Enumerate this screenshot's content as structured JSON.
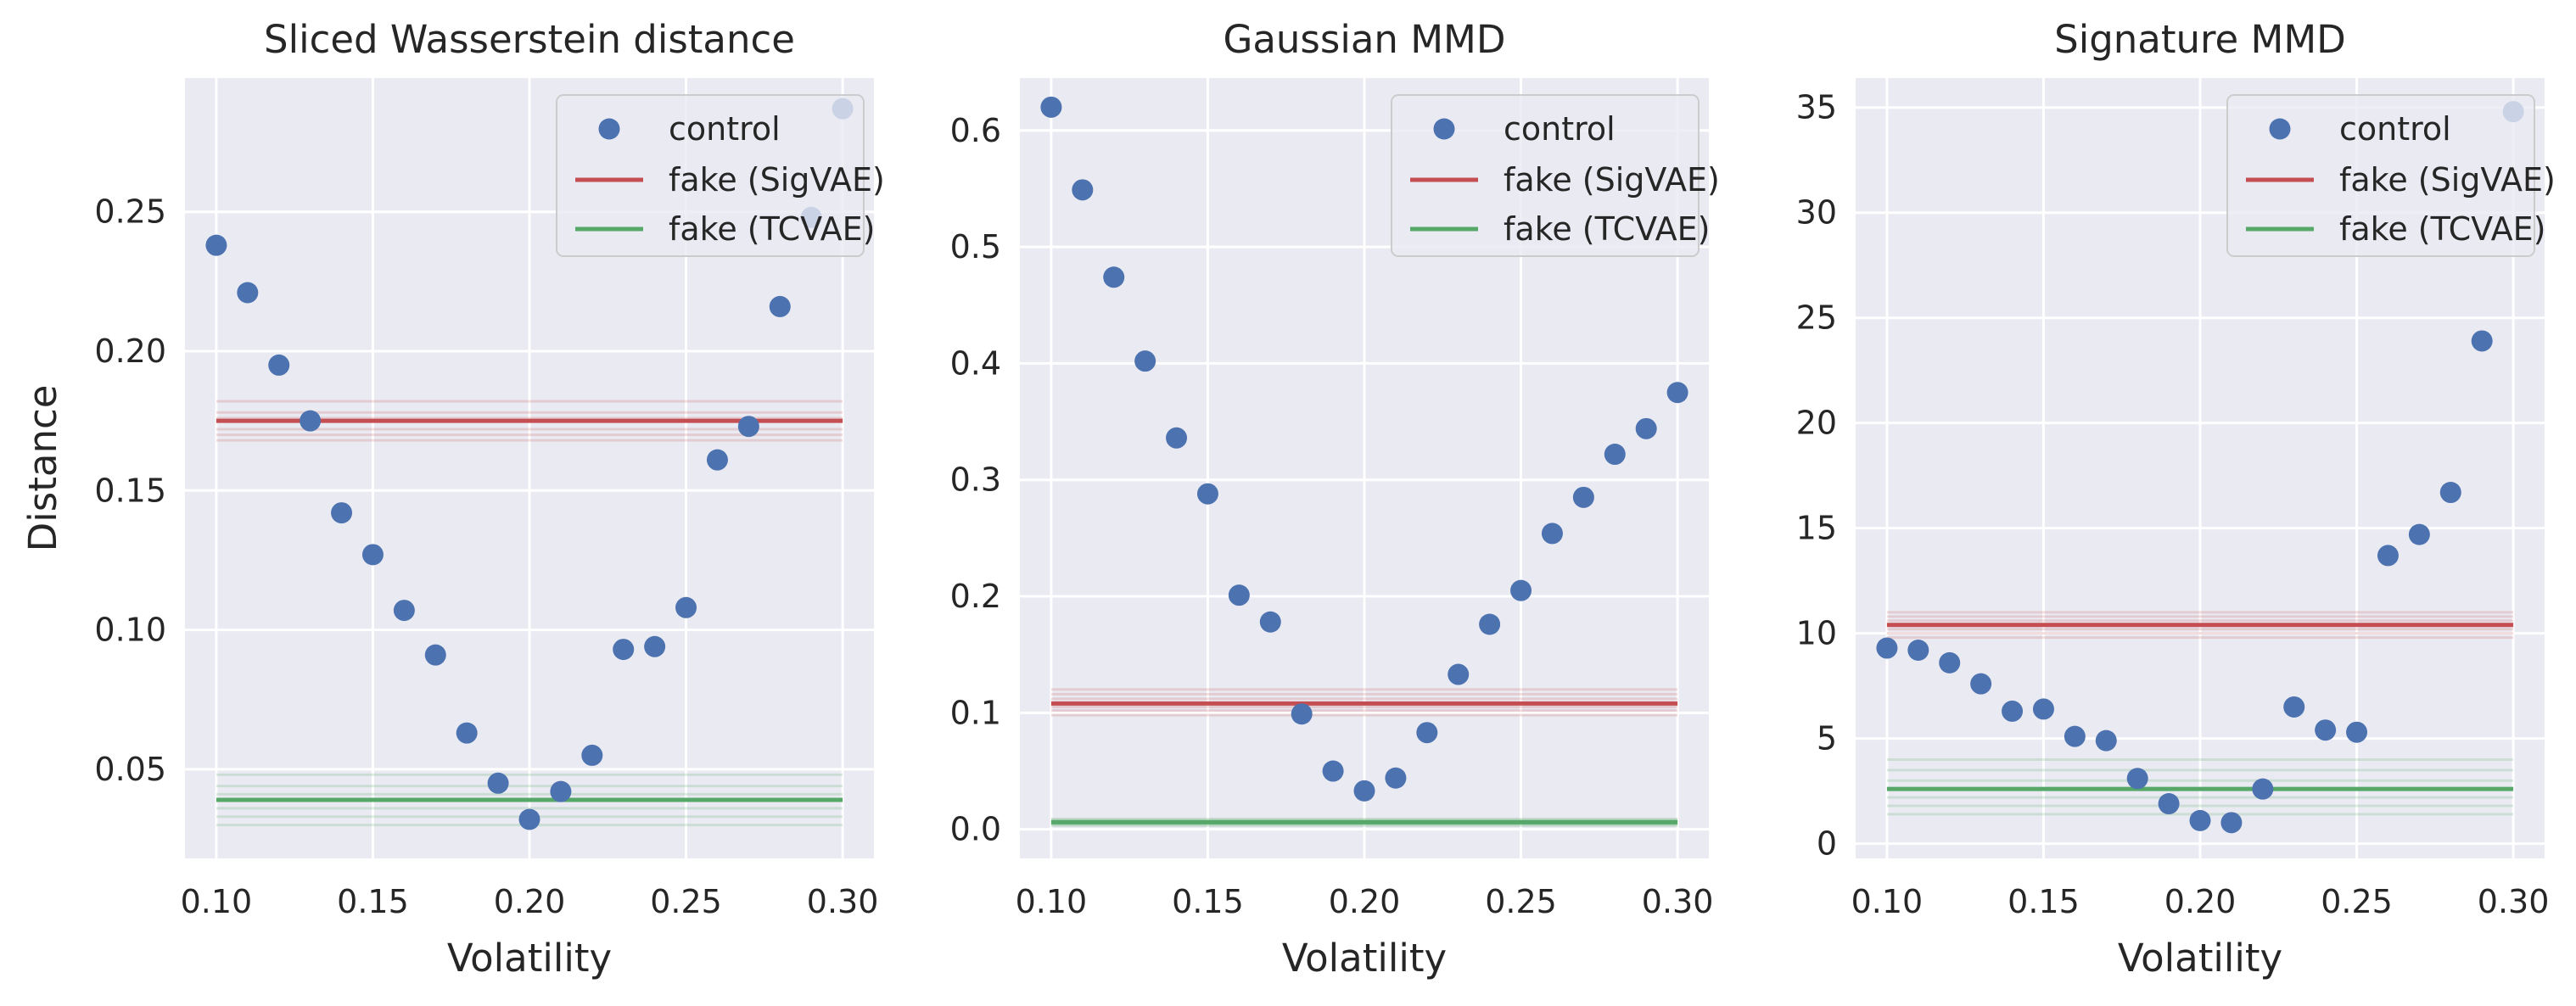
{
  "figure": {
    "ylabel": "Distance",
    "colors": {
      "background": "#EAEAF2",
      "grid": "#FFFFFF",
      "control": "#4C72B0",
      "sigvae": "#C44E52",
      "tcvae": "#55A868",
      "text": "#262626"
    }
  },
  "chart_data": [
    {
      "type": "scatter",
      "title": "Sliced Wasserstein distance",
      "xlabel": "Volatility",
      "ylabel": "Distance",
      "xlim": [
        0.09,
        0.31
      ],
      "ylim": [
        0.018,
        0.298
      ],
      "xticks": [
        0.1,
        0.15,
        0.2,
        0.25,
        0.3
      ],
      "xtick_labels": [
        "0.10",
        "0.15",
        "0.20",
        "0.25",
        "0.30"
      ],
      "yticks": [
        0.05,
        0.1,
        0.15,
        0.2,
        0.25
      ],
      "ytick_labels": [
        "0.05",
        "0.10",
        "0.15",
        "0.20",
        "0.25"
      ],
      "grid": true,
      "legend_position": "top-right",
      "legend": [
        "control",
        "fake (SigVAE)",
        "fake (TCVAE)"
      ],
      "control": {
        "x": [
          0.1,
          0.11,
          0.12,
          0.13,
          0.14,
          0.15,
          0.16,
          0.17,
          0.18,
          0.19,
          0.2,
          0.21,
          0.22,
          0.23,
          0.24,
          0.25,
          0.26,
          0.27,
          0.28,
          0.29,
          0.3
        ],
        "y": [
          0.238,
          0.221,
          0.195,
          0.175,
          0.142,
          0.127,
          0.107,
          0.091,
          0.063,
          0.045,
          0.032,
          0.042,
          0.055,
          0.093,
          0.094,
          0.108,
          0.161,
          0.173,
          0.216,
          0.248,
          0.287
        ]
      },
      "fake_sigvae": {
        "mean": 0.175,
        "band": [
          0.168,
          0.17,
          0.172,
          0.176,
          0.178,
          0.182
        ]
      },
      "fake_tcvae": {
        "mean": 0.039,
        "band": [
          0.03,
          0.033,
          0.036,
          0.041,
          0.044,
          0.048
        ]
      }
    },
    {
      "type": "scatter",
      "title": "Gaussian MMD",
      "xlabel": "Volatility",
      "ylabel": "",
      "xlim": [
        0.09,
        0.31
      ],
      "ylim": [
        -0.025,
        0.645
      ],
      "xticks": [
        0.1,
        0.15,
        0.2,
        0.25,
        0.3
      ],
      "xtick_labels": [
        "0.10",
        "0.15",
        "0.20",
        "0.25",
        "0.30"
      ],
      "yticks": [
        0.0,
        0.1,
        0.2,
        0.3,
        0.4,
        0.5,
        0.6
      ],
      "ytick_labels": [
        "0.0",
        "0.1",
        "0.2",
        "0.3",
        "0.4",
        "0.5",
        "0.6"
      ],
      "grid": true,
      "legend_position": "top-right",
      "legend": [
        "control",
        "fake (SigVAE)",
        "fake (TCVAE)"
      ],
      "control": {
        "x": [
          0.1,
          0.11,
          0.12,
          0.13,
          0.14,
          0.15,
          0.16,
          0.17,
          0.18,
          0.19,
          0.2,
          0.21,
          0.22,
          0.23,
          0.24,
          0.25,
          0.26,
          0.27,
          0.28,
          0.29,
          0.3
        ],
        "y": [
          0.62,
          0.549,
          0.474,
          0.402,
          0.336,
          0.288,
          0.201,
          0.178,
          0.099,
          0.05,
          0.033,
          0.044,
          0.083,
          0.133,
          0.176,
          0.205,
          0.254,
          0.285,
          0.322,
          0.344,
          0.375
        ]
      },
      "fake_sigvae": {
        "mean": 0.108,
        "band": [
          0.098,
          0.102,
          0.105,
          0.112,
          0.116,
          0.12
        ]
      },
      "fake_tcvae": {
        "mean": 0.006,
        "band": [
          0.003,
          0.004,
          0.005,
          0.007,
          0.008,
          0.009
        ]
      }
    },
    {
      "type": "scatter",
      "title": "Signature MMD",
      "xlabel": "Volatility",
      "ylabel": "",
      "xlim": [
        0.09,
        0.31
      ],
      "ylim": [
        -0.7,
        36.4
      ],
      "xticks": [
        0.1,
        0.15,
        0.2,
        0.25,
        0.3
      ],
      "xtick_labels": [
        "0.10",
        "0.15",
        "0.20",
        "0.25",
        "0.30"
      ],
      "yticks": [
        0,
        5,
        10,
        15,
        20,
        25,
        30,
        35
      ],
      "ytick_labels": [
        "0",
        "5",
        "10",
        "15",
        "20",
        "25",
        "30",
        "35"
      ],
      "grid": true,
      "legend_position": "top-right",
      "legend": [
        "control",
        "fake (SigVAE)",
        "fake (TCVAE)"
      ],
      "control": {
        "x": [
          0.1,
          0.11,
          0.12,
          0.13,
          0.14,
          0.15,
          0.16,
          0.17,
          0.18,
          0.19,
          0.2,
          0.21,
          0.22,
          0.23,
          0.24,
          0.25,
          0.26,
          0.27,
          0.28,
          0.29,
          0.3
        ],
        "y": [
          9.3,
          9.2,
          8.6,
          7.6,
          6.3,
          6.4,
          5.1,
          4.9,
          3.1,
          1.9,
          1.1,
          1.0,
          2.6,
          6.5,
          5.4,
          5.3,
          13.7,
          14.7,
          16.7,
          23.9,
          34.8
        ]
      },
      "fake_sigvae": {
        "mean": 10.4,
        "band": [
          9.8,
          10.0,
          10.2,
          10.6,
          10.8,
          11.0
        ]
      },
      "fake_tcvae": {
        "mean": 2.6,
        "band": [
          1.4,
          1.8,
          2.2,
          3.0,
          3.5,
          4.0
        ]
      }
    }
  ]
}
